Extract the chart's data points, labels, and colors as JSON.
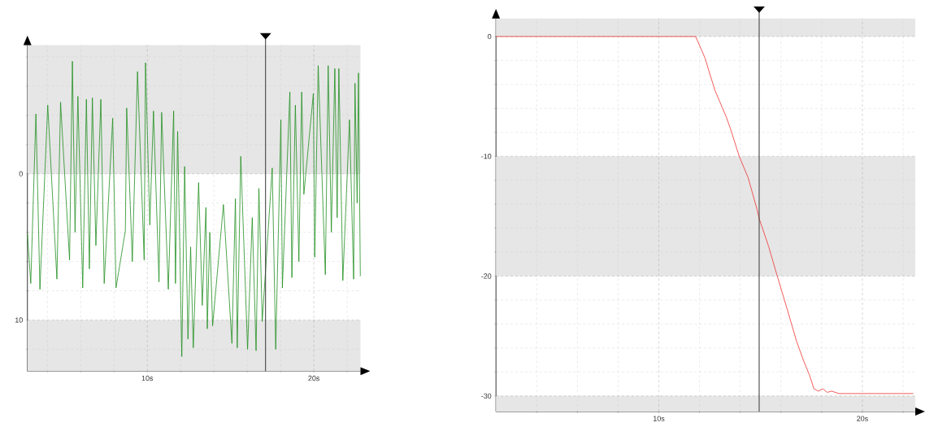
{
  "chart_data": [
    {
      "type": "line",
      "color": "#1f8f1f",
      "line_style": "solid",
      "marker": "none",
      "grid": true,
      "x": [
        2.8,
        3.0,
        3.31,
        3.55,
        4.02,
        4.57,
        4.79,
        5.33,
        5.5,
        5.66,
        5.83,
        6.12,
        6.34,
        6.52,
        6.7,
        6.91,
        7.21,
        7.41,
        7.92,
        8.12,
        8.68,
        8.76,
        9.1,
        9.41,
        9.81,
        9.89,
        10.15,
        10.37,
        10.7,
        10.86,
        11.26,
        11.58,
        11.69,
        11.82,
        12.07,
        12.24,
        12.44,
        12.6,
        12.76,
        13.08,
        13.3,
        13.52,
        13.6,
        13.75,
        13.92,
        14.57,
        15.08,
        15.29,
        15.4,
        15.61,
        16.02,
        16.3,
        16.53,
        16.7,
        16.9,
        17.5,
        17.71,
        18.02,
        18.11,
        18.56,
        18.68,
        18.89,
        19.1,
        19.27,
        19.4,
        19.97,
        20.05,
        20.26,
        20.69,
        20.86,
        21.05,
        21.26,
        21.4,
        21.5,
        21.74,
        22.14,
        22.39,
        22.47,
        22.6,
        22.68,
        22.79
      ],
      "values": [
        4.1,
        7.5,
        -4.1,
        7.9,
        -4.7,
        7.2,
        -4.9,
        5.9,
        -7.7,
        4.0,
        -5.3,
        7.8,
        -5.1,
        6.5,
        -5.2,
        4.9,
        -5.1,
        7.5,
        -3.8,
        7.8,
        3.9,
        -4.5,
        6.0,
        -7.0,
        5.9,
        -7.6,
        3.5,
        -4.3,
        7.4,
        -4.2,
        7.9,
        -4.3,
        7.5,
        -2.9,
        12.5,
        -0.5,
        11.3,
        5.0,
        11.9,
        0.6,
        9.0,
        2.3,
        10.6,
        4.0,
        10.4,
        2.1,
        11.6,
        1.7,
        11.9,
        -1.2,
        12.0,
        3.0,
        12.1,
        1.0,
        10.1,
        -0.4,
        12.0,
        -3.7,
        7.8,
        -5.6,
        7.1,
        -4.7,
        6.0,
        -5.6,
        1.4,
        -5.5,
        5.7,
        -7.4,
        6.9,
        -7.4,
        4.0,
        -7.2,
        3.0,
        -7.2,
        7.3,
        -3.7,
        7.2,
        -6.2,
        2.0,
        -6.9,
        7.0
      ],
      "xlim": [
        2.8,
        22.8
      ],
      "ylim": [
        13.5,
        -8.8
      ],
      "xticks": [
        {
          "value": 4,
          "label": null
        },
        {
          "value": 6,
          "label": null
        },
        {
          "value": 8,
          "label": null
        },
        {
          "value": 10,
          "label": "10s"
        },
        {
          "value": 12,
          "label": null
        },
        {
          "value": 14,
          "label": null
        },
        {
          "value": 16,
          "label": null
        },
        {
          "value": 18,
          "label": null
        },
        {
          "value": 20,
          "label": "20s"
        },
        {
          "value": 22,
          "label": null
        }
      ],
      "yticks": [
        {
          "value": -8,
          "label": null
        },
        {
          "value": -6,
          "label": null
        },
        {
          "value": -4,
          "label": null
        },
        {
          "value": -2,
          "label": null
        },
        0,
        {
          "value": 2,
          "label": null
        },
        {
          "value": 4,
          "label": null
        },
        {
          "value": 6,
          "label": null
        },
        {
          "value": 8,
          "label": null
        },
        10,
        {
          "value": 12,
          "label": null
        }
      ],
      "bands": [
        {
          "axis": "y",
          "from": -8.8,
          "to": 0,
          "color": "#e6e6e6"
        },
        {
          "axis": "y",
          "from": 10,
          "to": 13.5,
          "color": "#e6e6e6"
        }
      ],
      "ref_lines": [
        {
          "axis": "x",
          "value": 17.1,
          "color": "#333333"
        }
      ]
    },
    {
      "type": "line",
      "color": "#f03030",
      "line_style": "solid",
      "marker": "none",
      "grid": true,
      "x": [
        2.0,
        11.81,
        12.27,
        12.52,
        12.76,
        13.31,
        13.52,
        13.95,
        14.39,
        14.82,
        14.93,
        15.39,
        15.82,
        16.33,
        16.76,
        17.12,
        17.41,
        17.62,
        17.84,
        18.06,
        18.27,
        18.49,
        18.85,
        22.5
      ],
      "values": [
        0,
        0,
        -1.8,
        -3.2,
        -4.5,
        -6.7,
        -7.7,
        -10.0,
        -11.8,
        -14.4,
        -15.2,
        -17.5,
        -20.0,
        -22.9,
        -25.4,
        -27.1,
        -28.3,
        -29.4,
        -29.6,
        -29.4,
        -29.7,
        -29.6,
        -29.8,
        -29.8
      ],
      "xlim": [
        2.0,
        22.6
      ],
      "ylim": [
        -31.3,
        1.5
      ],
      "xticks": [
        {
          "value": 4,
          "label": null
        },
        {
          "value": 6,
          "label": null
        },
        {
          "value": 8,
          "label": null
        },
        {
          "value": 10,
          "label": "10s"
        },
        {
          "value": 12,
          "label": null
        },
        {
          "value": 14,
          "label": null
        },
        {
          "value": 16,
          "label": null
        },
        {
          "value": 18,
          "label": null
        },
        {
          "value": 20,
          "label": "20s"
        },
        {
          "value": 22,
          "label": null
        }
      ],
      "yticks": [
        -30,
        {
          "value": -28,
          "label": null
        },
        {
          "value": -26,
          "label": null
        },
        {
          "value": -24,
          "label": null
        },
        {
          "value": -22,
          "label": null
        },
        -20,
        {
          "value": -18,
          "label": null
        },
        {
          "value": -16,
          "label": null
        },
        {
          "value": -14,
          "label": null
        },
        {
          "value": -12,
          "label": null
        },
        -10,
        {
          "value": -8,
          "label": null
        },
        {
          "value": -6,
          "label": null
        },
        {
          "value": -4,
          "label": null
        },
        {
          "value": -2,
          "label": null
        },
        0
      ],
      "bands": [
        {
          "axis": "y",
          "from": 0,
          "to": 1.5,
          "color": "#e6e6e6"
        },
        {
          "axis": "y",
          "from": -20,
          "to": -10,
          "color": "#e6e6e6"
        },
        {
          "axis": "y",
          "from": -31.3,
          "to": -30,
          "color": "#e6e6e6"
        }
      ],
      "ref_lines": [
        {
          "axis": "x",
          "value": 14.93,
          "color": "#333333"
        }
      ]
    }
  ]
}
